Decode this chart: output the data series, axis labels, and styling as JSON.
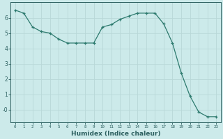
{
  "x": [
    0,
    1,
    2,
    3,
    4,
    5,
    6,
    7,
    8,
    9,
    10,
    11,
    12,
    13,
    14,
    15,
    16,
    17,
    18,
    19,
    20,
    21,
    22,
    23
  ],
  "y": [
    6.5,
    6.3,
    5.4,
    5.1,
    5.0,
    4.6,
    4.35,
    4.35,
    4.35,
    4.35,
    5.4,
    5.55,
    5.9,
    6.1,
    6.3,
    6.3,
    6.3,
    5.6,
    4.35,
    2.4,
    0.9,
    -0.15,
    -0.45,
    -0.45
  ],
  "xlabel": "Humidex (Indice chaleur)",
  "ylabel": "",
  "ylim": [
    -0.8,
    7.0
  ],
  "xlim": [
    -0.5,
    23.5
  ],
  "bg_color": "#cceaea",
  "line_color": "#2d7a6e",
  "grid_color": "#b8d8d8",
  "tick_color": "#2d6060",
  "yticks": [
    0,
    1,
    2,
    3,
    4,
    5,
    6
  ],
  "ytick_labels": [
    "-0",
    "1",
    "2",
    "3",
    "4",
    "5",
    "6"
  ],
  "xticks": [
    0,
    1,
    2,
    3,
    4,
    5,
    6,
    7,
    8,
    9,
    10,
    11,
    12,
    13,
    14,
    15,
    16,
    17,
    18,
    19,
    20,
    21,
    22,
    23
  ]
}
